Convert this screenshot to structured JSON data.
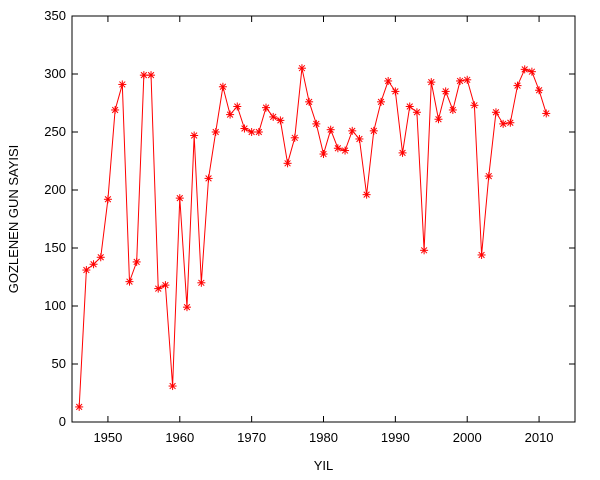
{
  "chart_data": {
    "type": "line",
    "title": "",
    "xlabel": "YIL",
    "ylabel": "GOZLENEN GUN SAYISI",
    "xlim": [
      1945,
      2015
    ],
    "ylim": [
      0,
      350
    ],
    "x_ticks": [
      1950,
      1960,
      1970,
      1980,
      1990,
      2000,
      2010
    ],
    "y_ticks": [
      0,
      50,
      100,
      150,
      200,
      250,
      300,
      350
    ],
    "grid": false,
    "legend": "none",
    "marker": "asterisk",
    "series": [
      {
        "color": "#ff0000",
        "x": [
          1946,
          1947,
          1948,
          1949,
          1950,
          1951,
          1952,
          1953,
          1954,
          1955,
          1956,
          1957,
          1958,
          1959,
          1960,
          1961,
          1962,
          1963,
          1964,
          1965,
          1966,
          1967,
          1968,
          1969,
          1970,
          1971,
          1972,
          1973,
          1974,
          1975,
          1976,
          1977,
          1978,
          1979,
          1980,
          1981,
          1982,
          1983,
          1984,
          1985,
          1986,
          1987,
          1988,
          1989,
          1990,
          1991,
          1992,
          1993,
          1994,
          1995,
          1996,
          1997,
          1998,
          1999,
          2000,
          2001,
          2002,
          2003,
          2004,
          2005,
          2006,
          2007,
          2008,
          2009,
          2010,
          2011
        ],
        "y": [
          13,
          131,
          136,
          142,
          192,
          269,
          291,
          121,
          138,
          299,
          299,
          115,
          118,
          31,
          193,
          99,
          247,
          120,
          210,
          250,
          289,
          265,
          272,
          253,
          250,
          250,
          271,
          263,
          260,
          223,
          245,
          305,
          276,
          257,
          231,
          252,
          236,
          234,
          251,
          244,
          196,
          251,
          276,
          294,
          285,
          232,
          272,
          267,
          148,
          293,
          261,
          285,
          269,
          294,
          295,
          273,
          144,
          212,
          267,
          257,
          258,
          290,
          304,
          302,
          286,
          266
        ]
      }
    ]
  }
}
